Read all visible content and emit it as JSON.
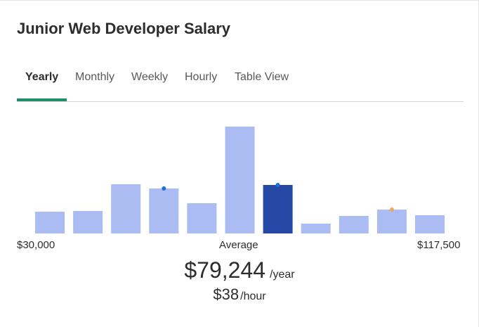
{
  "title": "Junior Web Developer Salary",
  "tabs": [
    {
      "label": "Yearly",
      "active": true
    },
    {
      "label": "Monthly",
      "active": false
    },
    {
      "label": "Weekly",
      "active": false
    },
    {
      "label": "Hourly",
      "active": false
    },
    {
      "label": "Table View",
      "active": false
    }
  ],
  "chart_data": {
    "type": "bar",
    "values": [
      31,
      32,
      70,
      64,
      43,
      152,
      69,
      14,
      25,
      34,
      26
    ],
    "highlight_index": 6,
    "markers": [
      {
        "index": 3,
        "value": 64,
        "color": "#1d6fd6"
      },
      {
        "index": 6,
        "value": 69,
        "color": "#1d6fd6"
      },
      {
        "index": 9,
        "value": 34,
        "color": "#f2a65a"
      }
    ],
    "ylim": [
      0,
      160
    ],
    "colors": {
      "bar": "#aabcf2",
      "highlight": "#2548a5"
    },
    "min_label": "$30,000",
    "center_label": "Average",
    "max_label": "$117,500"
  },
  "salary": {
    "yearly_value": "$79,244",
    "yearly_unit": "/year",
    "hourly_value": "$38",
    "hourly_unit": "/hour"
  }
}
